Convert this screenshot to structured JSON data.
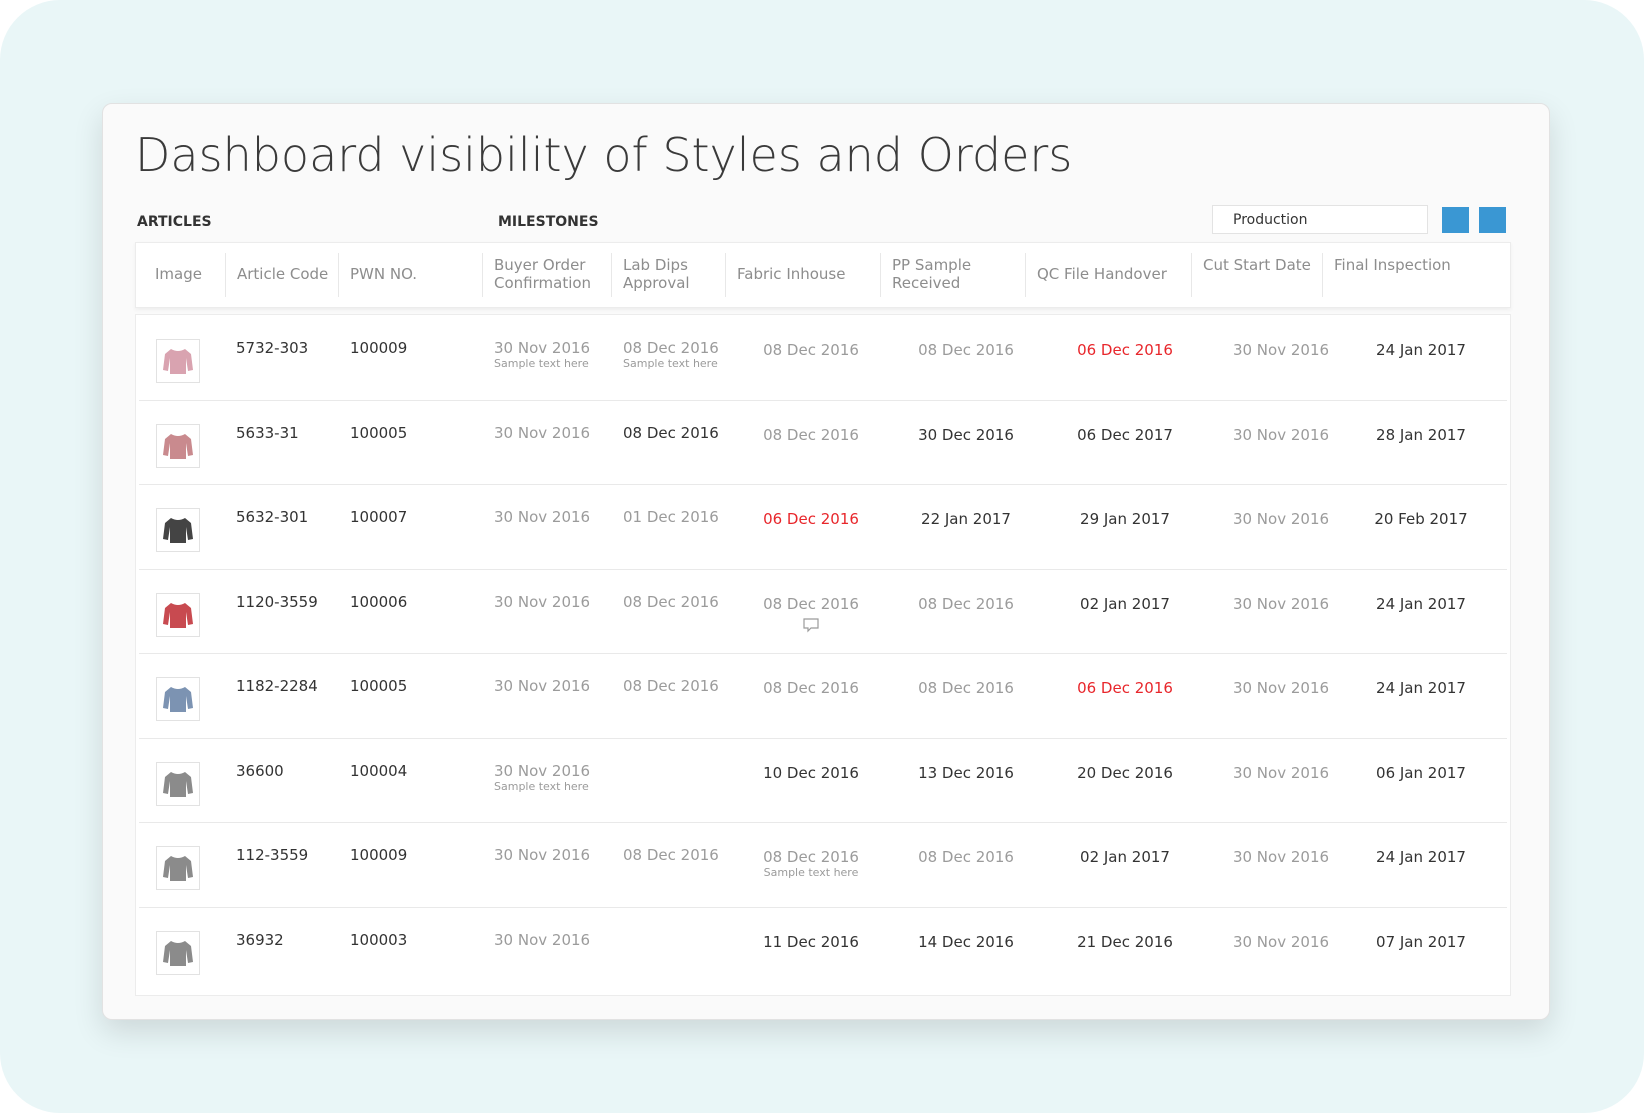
{
  "title": "Dashboard visibility of Styles and Orders",
  "sections": {
    "articles": "ARTICLES",
    "milestones": "MILESTONES"
  },
  "filter": {
    "value": "Production"
  },
  "table": {
    "headers": [
      "Image",
      "Article Code",
      "PWN NO.",
      "Buyer Order Confirmation",
      "Lab Dips Approval",
      "Fabric Inhouse",
      "PP Sample Received",
      "QC File Handover",
      "Cut Start Date",
      "Final Inspection"
    ],
    "rows": [
      {
        "code": "5732-303",
        "pwn": "100009",
        "milestones": [
          {
            "date": "30 Nov 2016",
            "color": "#9b9b9b",
            "note": "Sample text here"
          },
          {
            "date": "08 Dec 2016",
            "color": "#9b9b9b",
            "note": "Sample text here"
          },
          {
            "date": "08 Dec 2016",
            "color": "#9b9b9b"
          },
          {
            "date": "08 Dec 2016",
            "color": "#9b9b9b"
          },
          {
            "date": "06 Dec 2016",
            "color": "#e8262b"
          },
          {
            "date": "30 Nov 2016",
            "color": "#9b9b9b"
          },
          {
            "date": "24 Jan 2017",
            "color": "#333333"
          }
        ]
      },
      {
        "code": "5633-31",
        "pwn": "100005",
        "milestones": [
          {
            "date": "30 Nov 2016",
            "color": "#9b9b9b"
          },
          {
            "date": "08 Dec 2016",
            "color": "#333333"
          },
          {
            "date": "08 Dec 2016",
            "color": "#9b9b9b"
          },
          {
            "date": "30 Dec 2016",
            "color": "#333333"
          },
          {
            "date": "06 Dec 2017",
            "color": "#333333"
          },
          {
            "date": "30 Nov 2016",
            "color": "#9b9b9b"
          },
          {
            "date": "28 Jan 2017",
            "color": "#333333"
          }
        ]
      },
      {
        "code": "5632-301",
        "pwn": "100007",
        "milestones": [
          {
            "date": "30 Nov 2016",
            "color": "#9b9b9b"
          },
          {
            "date": "01 Dec 2016",
            "color": "#9b9b9b"
          },
          {
            "date": "06 Dec 2016",
            "color": "#e8262b"
          },
          {
            "date": "22 Jan 2017",
            "color": "#333333"
          },
          {
            "date": "29 Jan 2017",
            "color": "#333333"
          },
          {
            "date": "30 Nov 2016",
            "color": "#9b9b9b"
          },
          {
            "date": "20 Feb 2017",
            "color": "#333333"
          }
        ]
      },
      {
        "code": "1120-3559",
        "pwn": "100006",
        "milestones": [
          {
            "date": "30 Nov 2016",
            "color": "#9b9b9b"
          },
          {
            "date": "08 Dec 2016",
            "color": "#9b9b9b"
          },
          {
            "date": "08 Dec 2016",
            "color": "#9b9b9b",
            "comment": true
          },
          {
            "date": "08 Dec 2016",
            "color": "#9b9b9b"
          },
          {
            "date": "02 Jan 2017",
            "color": "#333333"
          },
          {
            "date": "30 Nov 2016",
            "color": "#9b9b9b"
          },
          {
            "date": "24 Jan 2017",
            "color": "#333333"
          }
        ]
      },
      {
        "code": "1182-2284",
        "pwn": "100005",
        "milestones": [
          {
            "date": "30 Nov 2016",
            "color": "#9b9b9b"
          },
          {
            "date": "08 Dec 2016",
            "color": "#9b9b9b"
          },
          {
            "date": "08 Dec 2016",
            "color": "#9b9b9b"
          },
          {
            "date": "08 Dec 2016",
            "color": "#9b9b9b"
          },
          {
            "date": "06 Dec 2016",
            "color": "#e8262b"
          },
          {
            "date": "30 Nov 2016",
            "color": "#9b9b9b"
          },
          {
            "date": "24 Jan 2017",
            "color": "#333333"
          }
        ]
      },
      {
        "code": "36600",
        "pwn": "100004",
        "milestones": [
          {
            "date": "30 Nov 2016",
            "color": "#9b9b9b",
            "note": "Sample text here"
          },
          null,
          {
            "date": "10 Dec 2016",
            "color": "#333333"
          },
          {
            "date": "13 Dec 2016",
            "color": "#333333"
          },
          {
            "date": "20 Dec 2016",
            "color": "#333333"
          },
          {
            "date": "30 Nov 2016",
            "color": "#9b9b9b"
          },
          {
            "date": "06 Jan 2017",
            "color": "#333333"
          }
        ]
      },
      {
        "code": "112-3559",
        "pwn": "100009",
        "milestones": [
          {
            "date": "30 Nov 2016",
            "color": "#9b9b9b"
          },
          {
            "date": "08 Dec 2016",
            "color": "#9b9b9b"
          },
          {
            "date": "08 Dec 2016",
            "color": "#9b9b9b",
            "note": "Sample text here"
          },
          {
            "date": "08 Dec 2016",
            "color": "#9b9b9b"
          },
          {
            "date": "02 Jan 2017",
            "color": "#333333"
          },
          {
            "date": "30 Nov 2016",
            "color": "#9b9b9b"
          },
          {
            "date": "24 Jan 2017",
            "color": "#333333"
          }
        ]
      },
      {
        "code": "36932",
        "pwn": "100003",
        "milestones": [
          {
            "date": "30 Nov 2016",
            "color": "#9b9b9b"
          },
          null,
          {
            "date": "11 Dec 2016",
            "color": "#333333"
          },
          {
            "date": "14 Dec 2016",
            "color": "#333333"
          },
          {
            "date": "21 Dec 2016",
            "color": "#333333"
          },
          {
            "date": "30 Nov 2016",
            "color": "#9b9b9b"
          },
          {
            "date": "07 Jan 2017",
            "color": "#333333"
          }
        ]
      }
    ]
  }
}
